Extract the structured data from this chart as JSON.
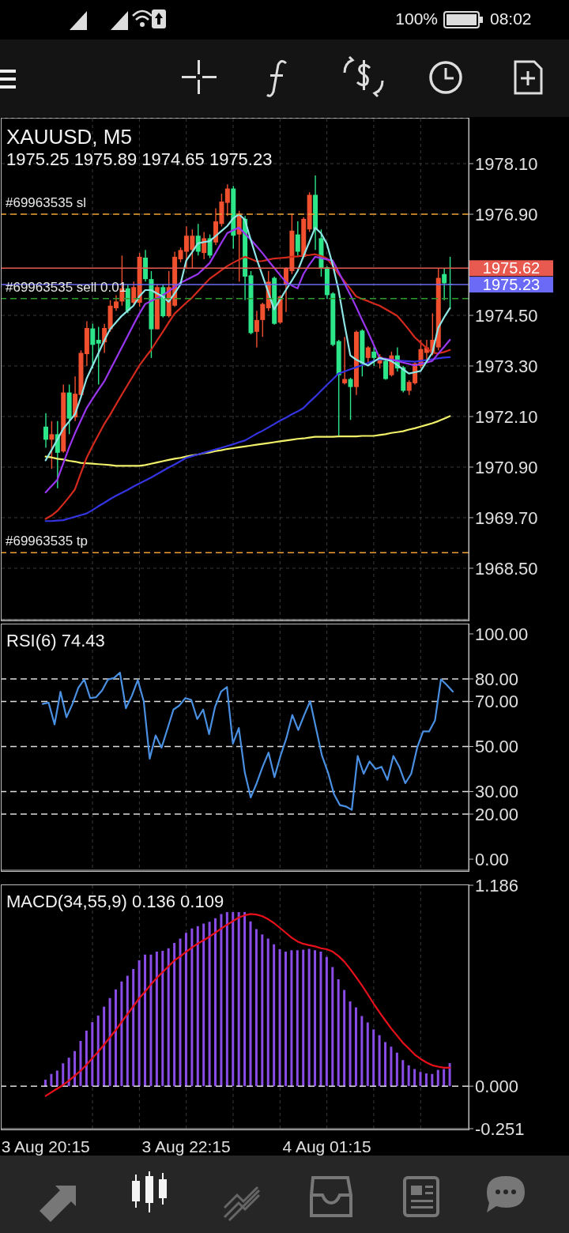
{
  "chart_data": [
    {
      "type": "candlestick",
      "title": "XAUUSD, M5",
      "subtitle": "1975.25 1975.89 1974.65 1975.23",
      "categories": [
        null,
        null,
        null,
        null,
        null,
        null,
        null,
        null,
        null,
        null,
        null,
        null,
        null,
        null,
        null,
        null,
        null,
        null,
        null,
        null,
        null,
        null,
        null,
        null,
        null,
        null,
        null,
        null,
        null,
        null,
        null,
        null,
        null,
        null,
        null,
        null,
        null,
        null,
        null,
        null,
        null,
        null,
        null,
        null,
        null,
        null,
        null,
        null,
        null,
        null,
        null,
        null,
        null,
        null,
        null,
        null,
        null,
        null,
        null,
        null,
        null,
        null,
        null,
        null,
        null,
        null,
        null,
        null,
        null,
        null
      ],
      "ohlc": [
        [
          1971.86,
          1972.18,
          1971.36,
          1971.55
        ],
        [
          1971.55,
          1971.99,
          1970.86,
          1971.68
        ],
        [
          1971.68,
          1971.99,
          1970.4,
          1971.24
        ],
        [
          1971.27,
          1972.86,
          1971.24,
          1972.67
        ],
        [
          1972.67,
          1972.86,
          1971.68,
          1972.05
        ],
        [
          1972.08,
          1973.05,
          1971.99,
          1972.64
        ],
        [
          1972.61,
          1973.67,
          1972.55,
          1973.61
        ],
        [
          1973.58,
          1974.36,
          1973.3,
          1974.2
        ],
        [
          1974.19,
          1974.3,
          1973.24,
          1973.8
        ],
        [
          1973.92,
          1974.23,
          1972.86,
          1973.83
        ],
        [
          1973.86,
          1974.3,
          1973.61,
          1974.2
        ],
        [
          1974.17,
          1974.86,
          1974.11,
          1974.73
        ],
        [
          1974.67,
          1974.98,
          1974.61,
          1974.83
        ],
        [
          1974.83,
          1975.92,
          1974.73,
          1975.14
        ],
        [
          1975.14,
          1975.23,
          1974.55,
          1974.61
        ],
        [
          1974.8,
          1975.3,
          1974.73,
          1975.17
        ],
        [
          1974.8,
          1975.98,
          1974.7,
          1975.89
        ],
        [
          1975.87,
          1976.05,
          1975.3,
          1975.36
        ],
        [
          1975.36,
          1975.55,
          1973.49,
          1974.17
        ],
        [
          1974.17,
          1975.23,
          1974.17,
          1975.17
        ],
        [
          1975.17,
          1975.23,
          1974.45,
          1974.48
        ],
        [
          1974.48,
          1975.55,
          1974.45,
          1975.17
        ],
        [
          1974.73,
          1976.01,
          1974.7,
          1975.89
        ],
        [
          1975.83,
          1976.11,
          1975.76,
          1976.05
        ],
        [
          1976.01,
          1976.61,
          1975.61,
          1976.39
        ],
        [
          1976.05,
          1976.54,
          1975.61,
          1976.39
        ],
        [
          1976.39,
          1976.67,
          1975.92,
          1976.01
        ],
        [
          1975.98,
          1976.48,
          1975.83,
          1976.33
        ],
        [
          1976.33,
          1976.42,
          1975.86,
          1975.92
        ],
        [
          1976.23,
          1977.04,
          1976.17,
          1976.73
        ],
        [
          1976.67,
          1977.39,
          1976.61,
          1977.2
        ],
        [
          1977.17,
          1977.61,
          1976.86,
          1977.51
        ],
        [
          1977.51,
          1977.57,
          1976.08,
          1976.39
        ],
        [
          1976.42,
          1976.98,
          1975.3,
          1976.89
        ],
        [
          1976.79,
          1976.86,
          1974.86,
          1975.42
        ],
        [
          1975.45,
          1975.55,
          1974.05,
          1974.08
        ],
        [
          1974.11,
          1974.61,
          1973.74,
          1974.39
        ],
        [
          1974.39,
          1974.8,
          1973.99,
          1974.77
        ],
        [
          1974.67,
          1975.55,
          1974.61,
          1975.3
        ],
        [
          1975.39,
          1975.42,
          1974.28,
          1974.3
        ],
        [
          1974.33,
          1974.98,
          1974.3,
          1974.95
        ],
        [
          1975.23,
          1975.64,
          1974.58,
          1975.61
        ],
        [
          1975.55,
          1976.92,
          1975.48,
          1976.51
        ],
        [
          1976.42,
          1976.73,
          1975.92,
          1976.01
        ],
        [
          1975.89,
          1976.83,
          1975.86,
          1976.79
        ],
        [
          1976.54,
          1977.42,
          1976.48,
          1977.36
        ],
        [
          1977.36,
          1977.82,
          1976.05,
          1976.54
        ],
        [
          1976.33,
          1976.54,
          1975.42,
          1975.61
        ],
        [
          1975.64,
          1975.67,
          1974.89,
          1974.98
        ],
        [
          1975.02,
          1975.05,
          1973.77,
          1973.8
        ],
        [
          1973.89,
          1973.92,
          1971.64,
          1973.08
        ],
        [
          1972.89,
          1973.99,
          1972.86,
          1972.99
        ],
        [
          1972.99,
          1973.02,
          1972.02,
          1972.8
        ],
        [
          1972.8,
          1974.14,
          1972.61,
          1974.11
        ],
        [
          1974.14,
          1974.17,
          1973.05,
          1973.36
        ],
        [
          1973.49,
          1973.77,
          1973.36,
          1973.74
        ],
        [
          1973.64,
          1973.74,
          1973.3,
          1973.49
        ],
        [
          1973.36,
          1973.58,
          1973.24,
          1973.52
        ],
        [
          1973.42,
          1973.49,
          1972.97,
          1972.99
        ],
        [
          1973.08,
          1973.64,
          1973.05,
          1973.55
        ],
        [
          1973.55,
          1973.74,
          1973.17,
          1973.24
        ],
        [
          1973.27,
          1973.3,
          1972.67,
          1972.71
        ],
        [
          1972.71,
          1972.96,
          1972.61,
          1972.92
        ],
        [
          1972.89,
          1973.39,
          1972.86,
          1973.36
        ],
        [
          1973.3,
          1973.92,
          1973.24,
          1973.7
        ],
        [
          1973.61,
          1973.92,
          1973.42,
          1973.74
        ],
        [
          1973.61,
          1974.55,
          1973.55,
          1973.92
        ],
        [
          1973.74,
          1975.61,
          1973.67,
          1975.39
        ],
        [
          1975.48,
          1975.61,
          1974.86,
          1975.26
        ],
        [
          1975.25,
          1975.89,
          1974.65,
          1975.23
        ]
      ],
      "colors": [
        "#2ee68a",
        "#f0502e",
        "#2ee68a",
        "#f0502e",
        "#2ee68a",
        "#f0502e",
        "#f0502e",
        "#f0502e",
        "#2ee68a",
        "#2ee68a",
        "#f0502e",
        "#f0502e",
        "#f0502e",
        "#f0502e",
        "#2ee68a",
        "#f0502e",
        "#f0502e",
        "#2ee68a",
        "#2ee68a",
        "#f0502e",
        "#2ee68a",
        "#f0502e",
        "#f0502e",
        "#f0502e",
        "#f0502e",
        "#f0502e",
        "#2ee68a",
        "#f0502e",
        "#2ee68a",
        "#f0502e",
        "#f0502e",
        "#f0502e",
        "#2ee68a",
        "#f0502e",
        "#2ee68a",
        "#2ee68a",
        "#f0502e",
        "#f0502e",
        "#f0502e",
        "#2ee68a",
        "#f0502e",
        "#f0502e",
        "#f0502e",
        "#2ee68a",
        "#f0502e",
        "#f0502e",
        "#2ee68a",
        "#2ee68a",
        "#2ee68a",
        "#2ee68a",
        "#2ee68a",
        "#f0502e",
        "#2ee68a",
        "#f0502e",
        "#2ee68a",
        "#f0502e",
        "#2ee68a",
        "#f0502e",
        "#2ee68a",
        "#f0502e",
        "#2ee68a",
        "#2ee68a",
        "#f0502e",
        "#f0502e",
        "#f0502e",
        "#f0502e",
        "#f0502e",
        "#f0502e",
        "#2ee68a",
        "#2ee68a"
      ],
      "series": [
        {
          "type": "line",
          "color": "#f2f26a",
          "values": [
            1971.15,
            1971.13,
            1971.1,
            1971.08,
            1971.05,
            1971.03,
            1971.0,
            1970.99,
            1970.98,
            1970.97,
            1970.96,
            1970.95,
            1970.93,
            1970.93,
            1970.93,
            1970.93,
            1970.93,
            1970.95,
            1970.98,
            1971.01,
            1971.04,
            1971.07,
            1971.1,
            1971.12,
            1971.15,
            1971.18,
            1971.2,
            1971.23,
            1971.25,
            1971.28,
            1971.3,
            1971.33,
            1971.35,
            1971.37,
            1971.39,
            1971.41,
            1971.43,
            1971.45,
            1971.47,
            1971.49,
            1971.51,
            1971.53,
            1971.55,
            1971.57,
            1971.58,
            1971.6,
            1971.62,
            1971.62,
            1971.62,
            1971.62,
            1971.63,
            1971.63,
            1971.63,
            1971.63,
            1971.64,
            1971.64,
            1971.64,
            1971.66,
            1971.68,
            1971.71,
            1971.73,
            1971.75,
            1971.79,
            1971.82,
            1971.86,
            1971.9,
            1971.94,
            1971.99,
            1972.05,
            1972.11
          ]
        },
        {
          "type": "line",
          "color": "#3434e0",
          "values": [
            1969.62,
            1969.62,
            1969.63,
            1969.64,
            1969.68,
            1969.72,
            1969.76,
            1969.8,
            1969.88,
            1969.97,
            1970.05,
            1970.14,
            1970.22,
            1970.29,
            1970.36,
            1970.44,
            1970.51,
            1970.58,
            1970.65,
            1970.73,
            1970.81,
            1970.89,
            1970.96,
            1971.04,
            1971.12,
            1971.16,
            1971.2,
            1971.24,
            1971.28,
            1971.32,
            1971.36,
            1971.4,
            1971.44,
            1971.49,
            1971.53,
            1971.61,
            1971.69,
            1971.76,
            1971.84,
            1971.92,
            1972.0,
            1972.07,
            1972.15,
            1972.22,
            1972.3,
            1972.44,
            1972.57,
            1972.71,
            1972.85,
            1972.98,
            1973.12,
            1973.17,
            1973.22,
            1973.27,
            1973.32,
            1973.37,
            1973.42,
            1973.46,
            1973.45,
            1973.44,
            1973.43,
            1973.42,
            1973.41,
            1973.4,
            1973.42,
            1973.44,
            1973.46,
            1973.48,
            1973.5,
            1973.51
          ]
        },
        {
          "type": "line",
          "color": "#d42a1e",
          "values": [
            1969.67,
            1969.75,
            1969.86,
            1970.02,
            1970.19,
            1970.37,
            1970.75,
            1971.12,
            1971.4,
            1971.66,
            1971.92,
            1972.14,
            1972.38,
            1972.62,
            1972.85,
            1973.08,
            1973.31,
            1973.5,
            1973.68,
            1973.9,
            1974.11,
            1974.33,
            1974.54,
            1974.67,
            1974.8,
            1974.92,
            1975.07,
            1975.22,
            1975.37,
            1975.47,
            1975.57,
            1975.67,
            1975.75,
            1975.82,
            1975.89,
            1975.84,
            1975.78,
            1975.79,
            1975.82,
            1975.85,
            1975.86,
            1975.87,
            1975.89,
            1975.9,
            1975.92,
            1975.93,
            1975.95,
            1975.91,
            1975.85,
            1975.68,
            1975.48,
            1975.31,
            1975.13,
            1974.95,
            1974.89,
            1974.84,
            1974.78,
            1974.73,
            1974.65,
            1974.57,
            1974.49,
            1974.33,
            1974.16,
            1973.98,
            1973.85,
            1973.73,
            1973.61,
            1973.6,
            1973.63,
            1973.68
          ]
        },
        {
          "type": "line",
          "color": "#9a36f0",
          "values": [
            1970.3,
            1970.45,
            1970.6,
            1970.98,
            1971.36,
            1971.7,
            1972.0,
            1972.3,
            1972.52,
            1972.73,
            1972.93,
            1973.2,
            1973.47,
            1973.74,
            1974.01,
            1974.28,
            1974.54,
            1974.77,
            1974.84,
            1974.91,
            1974.98,
            1975.07,
            1975.17,
            1975.27,
            1975.34,
            1975.41,
            1975.48,
            1975.61,
            1975.74,
            1975.98,
            1976.22,
            1976.45,
            1976.52,
            1976.58,
            1976.44,
            1976.3,
            1976.14,
            1975.98,
            1975.8,
            1975.63,
            1975.46,
            1975.29,
            1975.21,
            1975.14,
            1975.48,
            1975.7,
            1975.89,
            1975.86,
            1975.83,
            1975.8,
            1975.53,
            1975.26,
            1974.99,
            1974.7,
            1974.4,
            1974.11,
            1973.8,
            1973.49,
            1973.47,
            1973.45,
            1973.42,
            1973.38,
            1973.35,
            1973.31,
            1973.35,
            1973.38,
            1973.42,
            1973.59,
            1973.75,
            1973.92
          ]
        },
        {
          "type": "line",
          "color": "#8fe6e6",
          "values": [
            1971.06,
            1971.3,
            1971.55,
            1971.81,
            1971.98,
            1972.15,
            1972.55,
            1973.0,
            1973.3,
            1973.6,
            1973.9,
            1974.17,
            1974.33,
            1974.49,
            1974.61,
            1974.73,
            1974.95,
            1975.1,
            1975.1,
            1975.02,
            1974.95,
            1974.82,
            1975.02,
            1975.23,
            1975.8,
            1976.0,
            1976.21,
            1976.24,
            1976.26,
            1976.38,
            1976.5,
            1976.62,
            1976.8,
            1976.9,
            1976.77,
            1976.3,
            1975.85,
            1975.45,
            1975.05,
            1974.64,
            1974.87,
            1975.1,
            1975.32,
            1975.55,
            1975.9,
            1976.24,
            1976.58,
            1976.45,
            1976.2,
            1975.7,
            1975.1,
            1974.3,
            1973.55,
            1973.45,
            1973.38,
            1973.31,
            1973.4,
            1973.49,
            1973.45,
            1973.42,
            1973.32,
            1973.22,
            1973.12,
            1973.15,
            1973.18,
            1973.4,
            1973.61,
            1974.2,
            1974.45,
            1974.67
          ]
        }
      ],
      "ylim": [
        1967.28,
        1979.17
      ],
      "yticks": [
        {
          "value": 1978.1,
          "label": "1978.10"
        },
        {
          "value": 1976.9,
          "label": "1976.90"
        },
        {
          "value": 1974.5,
          "label": "1974.50"
        },
        {
          "value": 1973.3,
          "label": "1973.30"
        },
        {
          "value": 1972.1,
          "label": "1972.10"
        },
        {
          "value": 1970.9,
          "label": "1970.90"
        },
        {
          "value": 1969.7,
          "label": "1969.70"
        },
        {
          "value": 1968.5,
          "label": "1968.50"
        }
      ],
      "ref_lines": [
        {
          "axis": "y",
          "value": 1976.9,
          "label": "#69963535 sl",
          "color": "#f0a030",
          "line_style": "dashed"
        },
        {
          "axis": "y",
          "value": 1975.62,
          "label": "1975.62",
          "color": "#e85a50",
          "line_style": "solid"
        },
        {
          "axis": "y",
          "value": 1975.23,
          "label": "1975.23",
          "color": "#6a6af6",
          "line_style": "solid"
        },
        {
          "axis": "y",
          "value": 1974.9,
          "label": "#69963535 sell 0.01",
          "color": "#2f9a2f",
          "line_style": "dashed"
        },
        {
          "axis": "y",
          "value": 1968.87,
          "label": "#69963535 tp",
          "color": "#f0a030",
          "line_style": "dashed"
        }
      ],
      "annotations": [
        "100%",
        "08:02"
      ],
      "grid": true,
      "tick_labels": "y"
    },
    {
      "type": "line",
      "title": "RSI(6) 74.43",
      "categories": [
        null,
        null,
        null,
        null,
        null,
        null,
        null,
        null,
        null,
        null,
        null,
        null,
        null,
        null,
        null,
        null,
        null,
        null,
        null,
        null,
        null,
        null,
        null,
        null,
        null,
        null,
        null,
        null,
        null,
        null,
        null,
        null,
        null,
        null,
        null,
        null,
        null,
        null,
        null,
        null,
        null,
        null,
        null,
        null,
        null,
        null,
        null,
        null,
        null,
        null,
        null,
        null,
        null,
        null,
        null,
        null,
        null,
        null,
        null,
        null,
        null,
        null,
        null,
        null,
        null,
        null,
        null,
        null,
        null,
        null
      ],
      "color": "#4a90e2",
      "values": [
        68.9,
        69.5,
        59.8,
        74.3,
        63.0,
        68.8,
        76.1,
        79.8,
        71.5,
        71.9,
        74.9,
        79.8,
        80.4,
        82.8,
        67.0,
        72.5,
        79.5,
        70.1,
        44.6,
        54.9,
        49.5,
        57.9,
        66.4,
        68.2,
        71.5,
        70.7,
        62.2,
        66.4,
        55.5,
        67.6,
        74.3,
        76.4,
        51.3,
        58.2,
        38.5,
        27.4,
        33.7,
        41.0,
        47.3,
        36.4,
        45.8,
        53.7,
        64.0,
        57.3,
        64.0,
        70.1,
        57.9,
        45.8,
        38.5,
        28.9,
        24.0,
        23.4,
        21.9,
        45.8,
        37.9,
        43.4,
        40.0,
        41.0,
        35.2,
        45.8,
        41.0,
        33.7,
        37.9,
        49.5,
        56.7,
        56.7,
        61.6,
        79.8,
        77.3,
        74.4
      ],
      "ylim": [
        -4.9,
        104.2
      ],
      "yticks": [
        {
          "value": 100,
          "label": "100.00"
        },
        {
          "value": 80,
          "label": "80.00"
        },
        {
          "value": 70,
          "label": "70.00"
        },
        {
          "value": 50,
          "label": "50.00"
        },
        {
          "value": 30,
          "label": "30.00"
        },
        {
          "value": 20,
          "label": "20.00"
        },
        {
          "value": 0,
          "label": "0.00"
        }
      ],
      "ref_lines": [
        {
          "axis": "y",
          "value": 80,
          "color": "#dddddd",
          "line_style": "dashed"
        },
        {
          "axis": "y",
          "value": 70,
          "color": "#dddddd",
          "line_style": "dashed"
        },
        {
          "axis": "y",
          "value": 50,
          "color": "#dddddd",
          "line_style": "dashed"
        },
        {
          "axis": "y",
          "value": 30,
          "color": "#dddddd",
          "line_style": "dashed"
        },
        {
          "axis": "y",
          "value": 20,
          "color": "#dddddd",
          "line_style": "dashed"
        }
      ],
      "grid": "x",
      "tick_labels": "y"
    },
    {
      "type": "bar",
      "title": "MACD(34,55,9) 0.136 0.109",
      "categories": [
        "3 Aug 20:15",
        null,
        null,
        null,
        null,
        null,
        null,
        null,
        null,
        null,
        null,
        null,
        null,
        null,
        null,
        null,
        null,
        null,
        null,
        null,
        null,
        null,
        null,
        null,
        "3 Aug 22:15",
        null,
        null,
        null,
        null,
        null,
        null,
        null,
        null,
        null,
        null,
        null,
        null,
        null,
        null,
        null,
        null,
        null,
        null,
        null,
        null,
        null,
        null,
        null,
        "4 Aug 01:15",
        null,
        null,
        null,
        null,
        null,
        null,
        null,
        null,
        null,
        null,
        null,
        null,
        null,
        null,
        null,
        null,
        null,
        null,
        null,
        null,
        null
      ],
      "series": [
        {
          "type": "bar",
          "color": "#8a4ce6",
          "values": [
            0.038,
            0.072,
            0.092,
            0.135,
            0.168,
            0.207,
            0.267,
            0.328,
            0.378,
            0.417,
            0.469,
            0.52,
            0.571,
            0.618,
            0.652,
            0.691,
            0.743,
            0.777,
            0.777,
            0.794,
            0.799,
            0.814,
            0.845,
            0.871,
            0.905,
            0.931,
            0.944,
            0.96,
            0.97,
            0.991,
            1.016,
            1.027,
            1.027,
            1.027,
            1.027,
            0.973,
            0.927,
            0.896,
            0.871,
            0.837,
            0.808,
            0.794,
            0.802,
            0.802,
            0.806,
            0.811,
            0.802,
            0.794,
            0.763,
            0.703,
            0.631,
            0.568,
            0.5,
            0.465,
            0.414,
            0.376,
            0.335,
            0.301,
            0.26,
            0.233,
            0.198,
            0.154,
            0.123,
            0.101,
            0.084,
            0.075,
            0.072,
            0.096,
            0.101,
            0.136
          ]
        },
        {
          "type": "line",
          "color": "#e8101a",
          "values": [
            -0.058,
            -0.036,
            -0.014,
            0.007,
            0.033,
            0.062,
            0.092,
            0.127,
            0.166,
            0.204,
            0.246,
            0.289,
            0.332,
            0.38,
            0.426,
            0.472,
            0.52,
            0.558,
            0.602,
            0.64,
            0.674,
            0.708,
            0.743,
            0.766,
            0.794,
            0.819,
            0.842,
            0.862,
            0.883,
            0.907,
            0.931,
            0.953,
            0.975,
            0.996,
            1.009,
            1.016,
            1.013,
            1.003,
            0.985,
            0.962,
            0.934,
            0.905,
            0.876,
            0.854,
            0.84,
            0.832,
            0.825,
            0.814,
            0.808,
            0.794,
            0.768,
            0.734,
            0.691,
            0.643,
            0.594,
            0.541,
            0.486,
            0.435,
            0.387,
            0.34,
            0.298,
            0.255,
            0.221,
            0.186,
            0.161,
            0.14,
            0.123,
            0.115,
            0.109,
            0.109
          ]
        }
      ],
      "ylim": [
        -0.251,
        1.186
      ],
      "yticks": [
        1.186,
        {
          "value": 0,
          "label": "0.000"
        },
        -0.251
      ],
      "ref_lines": [
        {
          "axis": "y",
          "value": 0,
          "color": "#dddddd",
          "line_style": "dashed"
        }
      ],
      "grid": "x"
    }
  ]
}
